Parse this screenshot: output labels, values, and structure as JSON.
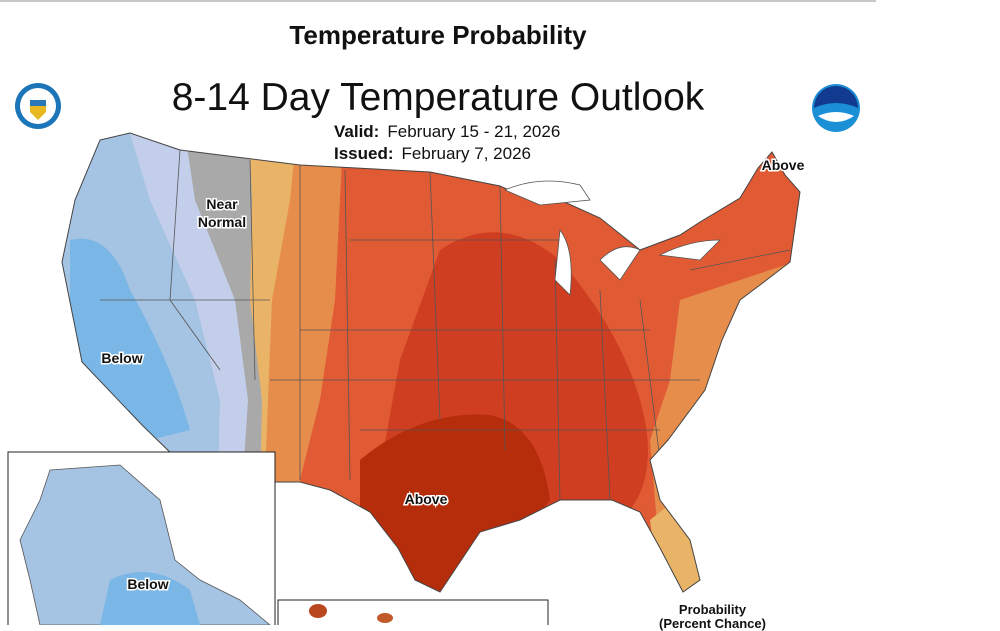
{
  "header": {
    "title": "Temperature Probability"
  },
  "map": {
    "title": "8-14 Day Temperature Outlook",
    "valid_label": "Valid:",
    "valid_value": "February 15 - 21, 2026",
    "issued_label": "Issued:",
    "issued_value": "February 7, 2026",
    "region_labels": {
      "near_normal_1": "Near",
      "near_normal_2": "Normal",
      "below_west": "Below",
      "above_south": "Above",
      "above_northeast": "Above",
      "below_alaska": "Below"
    },
    "logos": {
      "left": "Department of Commerce seal",
      "right": "NOAA"
    },
    "colors": {
      "below_light": "#c3cfea",
      "below_mid": "#a5c3e3",
      "below_strong": "#7ab6e6",
      "near_normal": "#a9a9a9",
      "above_33": "#e9b467",
      "above_40": "#e68d4b",
      "above_50": "#e05a33",
      "above_60": "#cf3e20",
      "above_70": "#b62d0c"
    }
  },
  "legend": {
    "title": "Probability",
    "subtitle": "(Percent Chance)"
  }
}
